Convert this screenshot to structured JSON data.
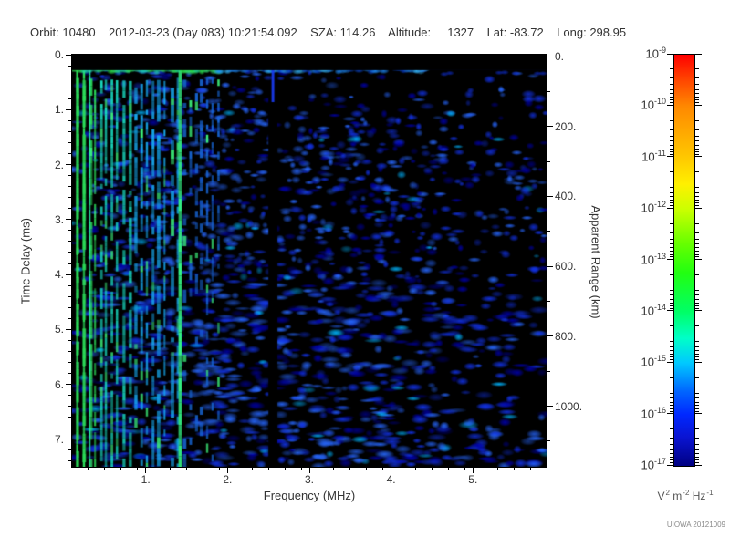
{
  "header": {
    "text": "Orbit: 10480    2012-03-23 (Day 083) 10:21:54.092    SZA: 114.26    Altitude:     1327    Lat: -83.72    Long: 298.95"
  },
  "credit": "UIOWA 20121009",
  "chart_data": {
    "type": "heatmap",
    "description": "Radar-sounder ionogram spectrogram: received spectral density (color) versus sounding frequency (x) and echo time delay (y); mostly dark background with diffuse blue speckle, bright cyan-green electron plasma harmonic stripes below 1.9 MHz, a bright surface/ionosphere reflection band near 0.2-0.4 ms across all frequencies, a bright vertical resonance line near 1.42 MHz, and a dark quiet gap near 2.5 MHz",
    "xlabel": "Frequency (MHz)",
    "x_range": [
      0.1,
      5.9
    ],
    "x_major_ticks": [
      {
        "v": 1,
        "label": "1."
      },
      {
        "v": 2,
        "label": "2."
      },
      {
        "v": 3,
        "label": "3."
      },
      {
        "v": 4,
        "label": "4."
      },
      {
        "v": 5,
        "label": "5."
      }
    ],
    "x_minor_step": 0.2,
    "ylabel": "Time Delay (ms)",
    "y_range": [
      0,
      7.5
    ],
    "y_major_ticks": [
      {
        "v": 0,
        "label": "0."
      },
      {
        "v": 1,
        "label": "1."
      },
      {
        "v": 2,
        "label": "2."
      },
      {
        "v": 3,
        "label": "3."
      },
      {
        "v": 4,
        "label": "4."
      },
      {
        "v": 5,
        "label": "5."
      },
      {
        "v": 6,
        "label": "6."
      },
      {
        "v": 7,
        "label": "7."
      }
    ],
    "y_minor_step": 0.2,
    "y2label": "Apparent Range (km)",
    "y2_range": [
      0,
      1173
    ],
    "y2_major_ticks": [
      {
        "v": 0,
        "label": "0."
      },
      {
        "v": 200,
        "label": "200."
      },
      {
        "v": 400,
        "label": "400."
      },
      {
        "v": 600,
        "label": "600."
      },
      {
        "v": 800,
        "label": "800."
      },
      {
        "v": 1000,
        "label": "1000."
      }
    ],
    "y2_minor_values": [
      100,
      300,
      500,
      700,
      900,
      1100
    ],
    "colorbar": {
      "label_exponents": [
        -9,
        -10,
        -11,
        -12,
        -13,
        -14,
        -15,
        -16,
        -17
      ],
      "unit_parts": [
        {
          "base": "V",
          "sup": "2"
        },
        {
          "base": "m",
          "sup": "-2"
        },
        {
          "base": "Hz",
          "sup": "-1"
        }
      ],
      "gradient_stops": [
        [
          "#ff0000",
          0
        ],
        [
          "#ff4400",
          0.06
        ],
        [
          "#ff8800",
          0.125
        ],
        [
          "#ffc800",
          0.25
        ],
        [
          "#fff000",
          0.315
        ],
        [
          "#ccff00",
          0.375
        ],
        [
          "#66ff00",
          0.46
        ],
        [
          "#22ff11",
          0.53
        ],
        [
          "#00ff66",
          0.625
        ],
        [
          "#00ffc8",
          0.69
        ],
        [
          "#00c8ff",
          0.75
        ],
        [
          "#0064ff",
          0.82
        ],
        [
          "#0028ff",
          0.875
        ],
        [
          "#0a14d2",
          0.93
        ],
        [
          "#000082",
          1
        ]
      ]
    },
    "features": {
      "background": "#000000",
      "noise": {
        "name": "diffuse-echo-speckle",
        "count": 3000,
        "colors": {
          "dim": "#0000a8",
          "mid": "#1232e6",
          "bright": "#2767ff",
          "cyan": "#00b4ff"
        },
        "cyan_frac": 0.05
      },
      "top_strip": {
        "name": "transmit-blanking",
        "t_end_ms": 0.18,
        "color": "#000000"
      },
      "echo_band": {
        "name": "first-reflection-trace",
        "t0_ms": 0.2,
        "t1_ms": 0.42,
        "bright_f_end": 1.9,
        "mid_f_end": 4.45,
        "colors": {
          "bright": [
            "#2be04f",
            "#36f07e",
            "#1fd9ae"
          ],
          "mid": [
            "#1e8cff",
            "#35b8ff",
            "#0c50e8"
          ],
          "line": "#1334cf"
        }
      },
      "harmonic_stripes": {
        "name": "plasma-oscillation-harmonics",
        "f_start": 0.155,
        "f_end": 1.92,
        "f_step": 0.071,
        "zones": [
          {
            "f_max": 0.38,
            "color": "#2ce05a"
          },
          {
            "f_max": 0.85,
            "color": "#19dcc0"
          },
          {
            "f_max": 1.45,
            "color": "#17a8ee"
          },
          {
            "f_max": 1.92,
            "color": "#1767d8"
          }
        ]
      },
      "bright_lines": [
        {
          "f": 0.163,
          "color": "#2ce05a",
          "w": 2.5
        },
        {
          "f": 0.245,
          "color": "#2ce05a",
          "w": 2.5
        },
        {
          "f": 0.315,
          "color": "#25e8a0",
          "w": 2
        },
        {
          "f": 1.42,
          "color": "#35f585",
          "w": 3.5
        }
      ],
      "dark_gap": {
        "name": "quiet-frequency-gap",
        "f0": 2.5,
        "f1": 2.61,
        "t_start_ms": 0.78,
        "streak_color": "#1a3cf5"
      }
    }
  }
}
